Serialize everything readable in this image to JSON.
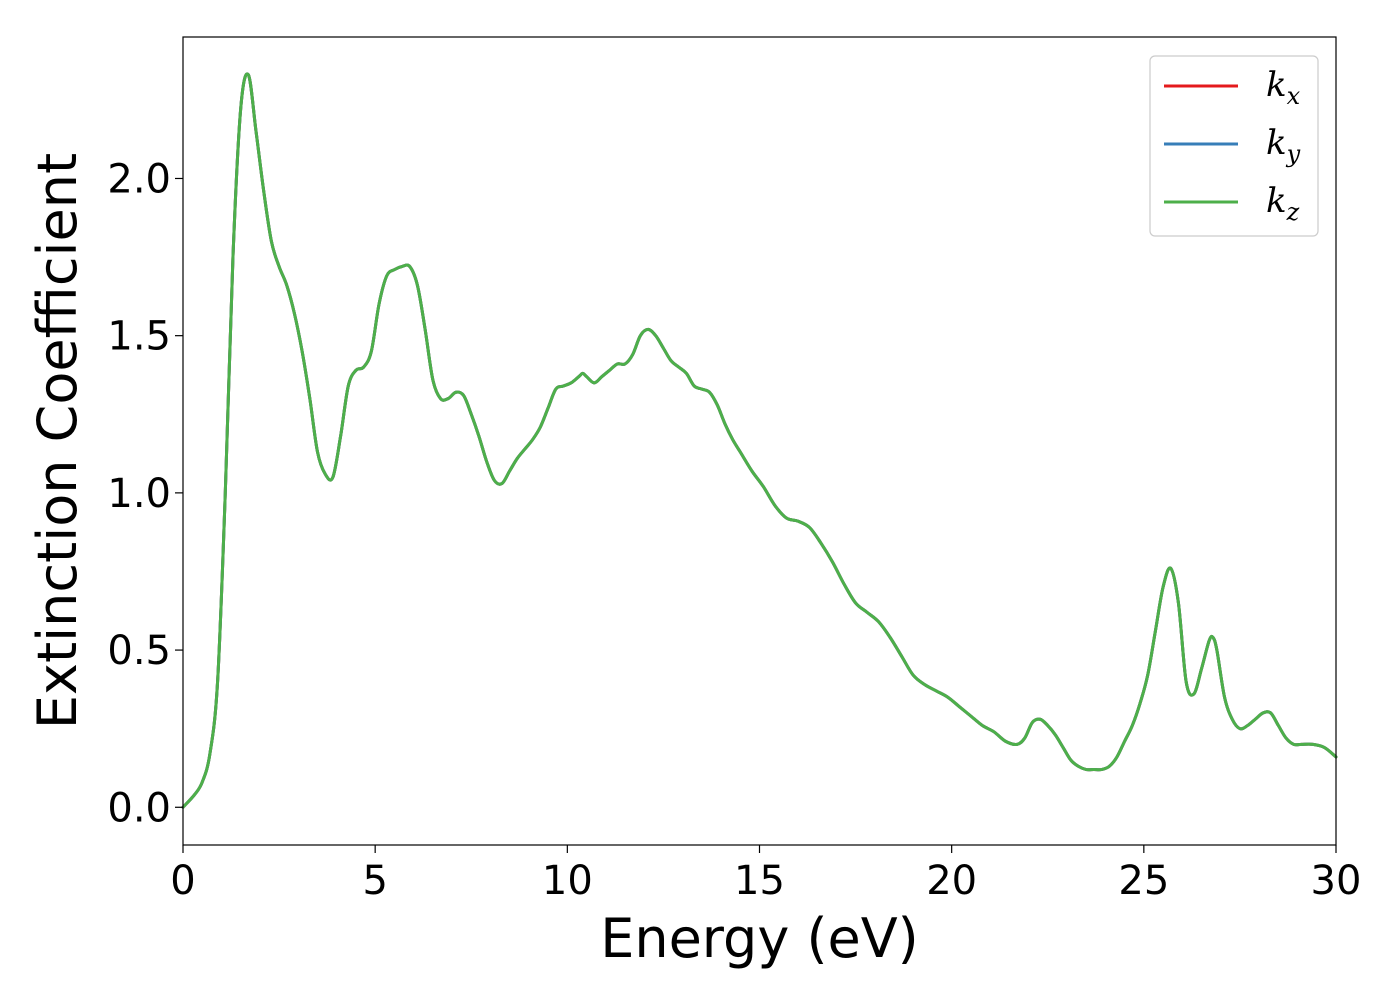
{
  "chart_data": {
    "type": "line",
    "title": "",
    "xlabel": "Energy (eV)",
    "ylabel": "Extinction Coefficient",
    "xlim": [
      0,
      30
    ],
    "ylim": [
      -0.12,
      2.45
    ],
    "xticks": [
      0,
      5,
      10,
      15,
      20,
      25,
      30
    ],
    "xtick_labels": [
      "0",
      "5",
      "10",
      "15",
      "20",
      "25",
      "30"
    ],
    "yticks": [
      0.0,
      0.5,
      1.0,
      1.5,
      2.0
    ],
    "ytick_labels": [
      "0.0",
      "0.5",
      "1.0",
      "1.5",
      "2.0"
    ],
    "grid": false,
    "legend_position": "top-right",
    "x": [
      0,
      0.3,
      0.5,
      0.7,
      0.9,
      1.1,
      1.3,
      1.5,
      1.7,
      1.9,
      2.1,
      2.3,
      2.5,
      2.7,
      2.9,
      3.1,
      3.3,
      3.5,
      3.7,
      3.9,
      4.1,
      4.3,
      4.5,
      4.7,
      4.9,
      5.1,
      5.3,
      5.5,
      5.7,
      5.9,
      6.1,
      6.3,
      6.5,
      6.7,
      6.9,
      7.1,
      7.3,
      7.5,
      7.7,
      7.9,
      8.1,
      8.3,
      8.5,
      8.7,
      8.9,
      9.1,
      9.3,
      9.5,
      9.7,
      9.9,
      10.1,
      10.3,
      10.4,
      10.5,
      10.7,
      10.9,
      11.1,
      11.3,
      11.5,
      11.7,
      11.9,
      12.1,
      12.3,
      12.5,
      12.7,
      12.9,
      13.1,
      13.3,
      13.5,
      13.7,
      13.9,
      14.1,
      14.3,
      14.5,
      14.8,
      15.1,
      15.4,
      15.7,
      16.0,
      16.3,
      16.6,
      16.9,
      17.2,
      17.5,
      17.8,
      18.1,
      18.4,
      18.7,
      19.0,
      19.3,
      19.6,
      19.9,
      20.2,
      20.5,
      20.8,
      21.1,
      21.4,
      21.7,
      21.9,
      22.1,
      22.3,
      22.5,
      22.7,
      22.9,
      23.1,
      23.3,
      23.5,
      23.7,
      23.9,
      24.1,
      24.3,
      24.5,
      24.7,
      24.9,
      25.1,
      25.3,
      25.5,
      25.7,
      25.9,
      26.1,
      26.3,
      26.5,
      26.7,
      26.8,
      26.9,
      27.1,
      27.3,
      27.5,
      27.7,
      27.9,
      28.1,
      28.3,
      28.5,
      28.7,
      28.9,
      29.1,
      29.4,
      29.7,
      30.0
    ],
    "series": [
      {
        "name": "k_x",
        "color": "#e41a1c",
        "values": [
          0.0,
          0.04,
          0.08,
          0.17,
          0.4,
          1.0,
          1.75,
          2.22,
          2.33,
          2.15,
          1.96,
          1.8,
          1.72,
          1.66,
          1.57,
          1.45,
          1.3,
          1.13,
          1.06,
          1.05,
          1.18,
          1.34,
          1.39,
          1.4,
          1.45,
          1.6,
          1.69,
          1.71,
          1.72,
          1.72,
          1.66,
          1.52,
          1.36,
          1.3,
          1.3,
          1.32,
          1.31,
          1.25,
          1.18,
          1.1,
          1.04,
          1.03,
          1.07,
          1.11,
          1.14,
          1.17,
          1.21,
          1.27,
          1.33,
          1.34,
          1.35,
          1.37,
          1.38,
          1.37,
          1.35,
          1.37,
          1.39,
          1.41,
          1.41,
          1.44,
          1.5,
          1.52,
          1.5,
          1.46,
          1.42,
          1.4,
          1.38,
          1.34,
          1.33,
          1.32,
          1.28,
          1.22,
          1.17,
          1.13,
          1.07,
          1.02,
          0.96,
          0.92,
          0.91,
          0.89,
          0.84,
          0.78,
          0.71,
          0.65,
          0.62,
          0.59,
          0.54,
          0.48,
          0.42,
          0.39,
          0.37,
          0.35,
          0.32,
          0.29,
          0.26,
          0.24,
          0.21,
          0.2,
          0.22,
          0.27,
          0.28,
          0.26,
          0.23,
          0.19,
          0.15,
          0.13,
          0.12,
          0.12,
          0.12,
          0.13,
          0.16,
          0.21,
          0.26,
          0.33,
          0.42,
          0.56,
          0.7,
          0.76,
          0.65,
          0.4,
          0.36,
          0.44,
          0.53,
          0.54,
          0.5,
          0.35,
          0.28,
          0.25,
          0.26,
          0.28,
          0.3,
          0.3,
          0.26,
          0.22,
          0.2,
          0.2,
          0.2,
          0.19,
          0.16
        ]
      },
      {
        "name": "k_y",
        "color": "#377eb8",
        "values": [
          0.0,
          0.04,
          0.08,
          0.17,
          0.4,
          1.0,
          1.75,
          2.22,
          2.33,
          2.15,
          1.96,
          1.8,
          1.72,
          1.66,
          1.57,
          1.45,
          1.3,
          1.13,
          1.06,
          1.05,
          1.18,
          1.34,
          1.39,
          1.4,
          1.45,
          1.6,
          1.69,
          1.71,
          1.72,
          1.72,
          1.66,
          1.52,
          1.36,
          1.3,
          1.3,
          1.32,
          1.31,
          1.25,
          1.18,
          1.1,
          1.04,
          1.03,
          1.07,
          1.11,
          1.14,
          1.17,
          1.21,
          1.27,
          1.33,
          1.34,
          1.35,
          1.37,
          1.38,
          1.37,
          1.35,
          1.37,
          1.39,
          1.41,
          1.41,
          1.44,
          1.5,
          1.52,
          1.5,
          1.46,
          1.42,
          1.4,
          1.38,
          1.34,
          1.33,
          1.32,
          1.28,
          1.22,
          1.17,
          1.13,
          1.07,
          1.02,
          0.96,
          0.92,
          0.91,
          0.89,
          0.84,
          0.78,
          0.71,
          0.65,
          0.62,
          0.59,
          0.54,
          0.48,
          0.42,
          0.39,
          0.37,
          0.35,
          0.32,
          0.29,
          0.26,
          0.24,
          0.21,
          0.2,
          0.22,
          0.27,
          0.28,
          0.26,
          0.23,
          0.19,
          0.15,
          0.13,
          0.12,
          0.12,
          0.12,
          0.13,
          0.16,
          0.21,
          0.26,
          0.33,
          0.42,
          0.56,
          0.7,
          0.76,
          0.65,
          0.4,
          0.36,
          0.44,
          0.53,
          0.54,
          0.5,
          0.35,
          0.28,
          0.25,
          0.26,
          0.28,
          0.3,
          0.3,
          0.26,
          0.22,
          0.2,
          0.2,
          0.2,
          0.19,
          0.16
        ]
      },
      {
        "name": "k_z",
        "color": "#4daf4a",
        "values": [
          0.0,
          0.04,
          0.08,
          0.17,
          0.4,
          1.0,
          1.75,
          2.22,
          2.33,
          2.15,
          1.96,
          1.8,
          1.72,
          1.66,
          1.57,
          1.45,
          1.3,
          1.13,
          1.06,
          1.05,
          1.18,
          1.34,
          1.39,
          1.4,
          1.45,
          1.6,
          1.69,
          1.71,
          1.72,
          1.72,
          1.66,
          1.52,
          1.36,
          1.3,
          1.3,
          1.32,
          1.31,
          1.25,
          1.18,
          1.1,
          1.04,
          1.03,
          1.07,
          1.11,
          1.14,
          1.17,
          1.21,
          1.27,
          1.33,
          1.34,
          1.35,
          1.37,
          1.38,
          1.37,
          1.35,
          1.37,
          1.39,
          1.41,
          1.41,
          1.44,
          1.5,
          1.52,
          1.5,
          1.46,
          1.42,
          1.4,
          1.38,
          1.34,
          1.33,
          1.32,
          1.28,
          1.22,
          1.17,
          1.13,
          1.07,
          1.02,
          0.96,
          0.92,
          0.91,
          0.89,
          0.84,
          0.78,
          0.71,
          0.65,
          0.62,
          0.59,
          0.54,
          0.48,
          0.42,
          0.39,
          0.37,
          0.35,
          0.32,
          0.29,
          0.26,
          0.24,
          0.21,
          0.2,
          0.22,
          0.27,
          0.28,
          0.26,
          0.23,
          0.19,
          0.15,
          0.13,
          0.12,
          0.12,
          0.12,
          0.13,
          0.16,
          0.21,
          0.26,
          0.33,
          0.42,
          0.56,
          0.7,
          0.76,
          0.65,
          0.4,
          0.36,
          0.44,
          0.53,
          0.54,
          0.5,
          0.35,
          0.28,
          0.25,
          0.26,
          0.28,
          0.3,
          0.3,
          0.26,
          0.22,
          0.2,
          0.2,
          0.2,
          0.19,
          0.16
        ]
      }
    ],
    "legend": [
      {
        "base": "k",
        "sub": "x",
        "color": "#e41a1c"
      },
      {
        "base": "k",
        "sub": "y",
        "color": "#377eb8"
      },
      {
        "base": "k",
        "sub": "z",
        "color": "#4daf4a"
      }
    ]
  }
}
